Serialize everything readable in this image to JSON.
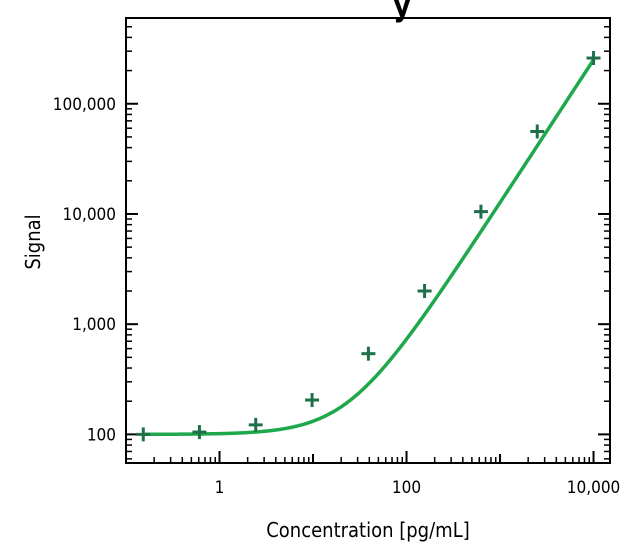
{
  "chart_data": {
    "type": "scatter",
    "title_partial": "y",
    "xlabel": "Concentration  [pg/mL]",
    "ylabel": "Signal",
    "x_scale": "log",
    "y_scale": "log",
    "xlim": [
      0.1,
      15000
    ],
    "ylim": [
      55,
      600000
    ],
    "x_ticks": [
      {
        "value": 1,
        "label": "1"
      },
      {
        "value": 100,
        "label": "100"
      },
      {
        "value": 10000,
        "label": "10,000"
      }
    ],
    "y_ticks": [
      {
        "value": 100,
        "label": "100"
      },
      {
        "value": 1000,
        "label": "1,000"
      },
      {
        "value": 10000,
        "label": "10,000"
      },
      {
        "value": 100000,
        "label": "100,000"
      }
    ],
    "series": [
      {
        "marker": "plus",
        "color": "#1f6f4a",
        "x": [
          0.153,
          0.61,
          2.44,
          9.77,
          39.1,
          156,
          625,
          2500,
          10000
        ],
        "y": [
          100,
          105,
          122,
          205,
          540,
          2000,
          10500,
          56000,
          260000
        ]
      }
    ],
    "fit": {
      "model": "4PL",
      "color": "#1ea84c",
      "bottom": 100,
      "top": 100000000,
      "ec50": 1000000,
      "hill": 1.3
    },
    "grid": false,
    "legend": "none"
  }
}
